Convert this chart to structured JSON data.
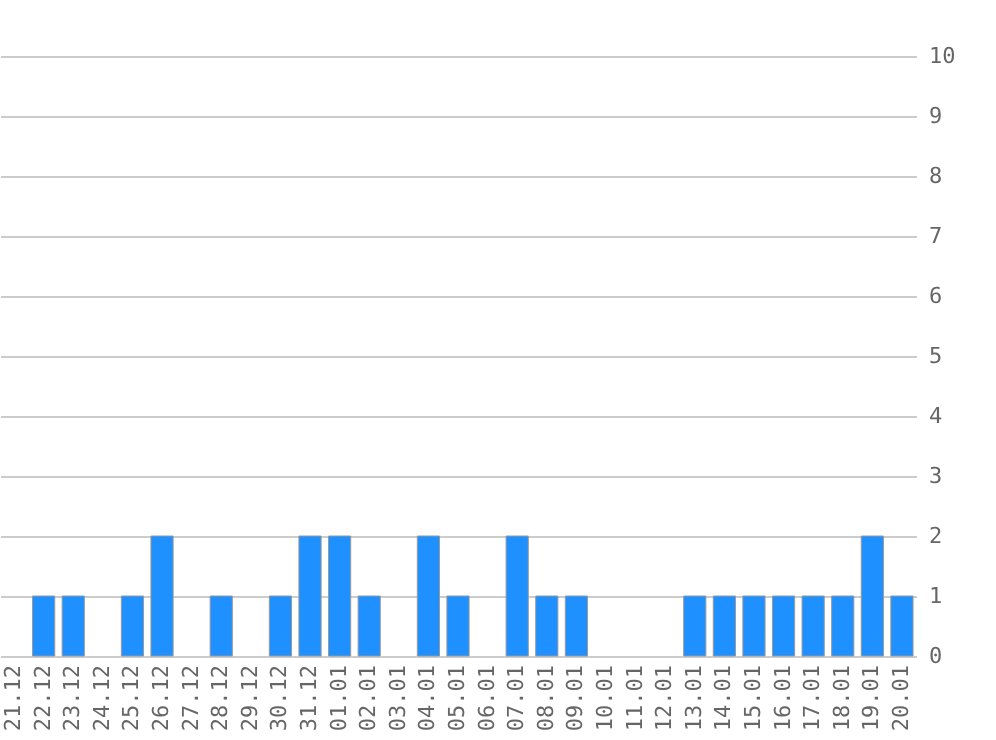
{
  "chart_data": {
    "type": "bar",
    "categories": [
      "21.12",
      "22.12",
      "23.12",
      "24.12",
      "25.12",
      "26.12",
      "27.12",
      "28.12",
      "29.12",
      "30.12",
      "31.12",
      "01.01",
      "02.01",
      "03.01",
      "04.01",
      "05.01",
      "06.01",
      "07.01",
      "08.01",
      "09.01",
      "10.01",
      "11.01",
      "12.01",
      "13.01",
      "14.01",
      "15.01",
      "16.01",
      "17.01",
      "18.01",
      "19.01",
      "20.01"
    ],
    "values": [
      0,
      1,
      1,
      0,
      1,
      2,
      0,
      1,
      0,
      1,
      2,
      2,
      1,
      0,
      2,
      1,
      0,
      2,
      1,
      1,
      0,
      0,
      0,
      1,
      1,
      1,
      1,
      1,
      1,
      2,
      1
    ],
    "color": "#1e90ff",
    "ylim": [
      0,
      10
    ],
    "yticks": [
      0,
      1,
      2,
      3,
      4,
      5,
      6,
      7,
      8,
      9,
      10
    ],
    "grid": "y"
  }
}
